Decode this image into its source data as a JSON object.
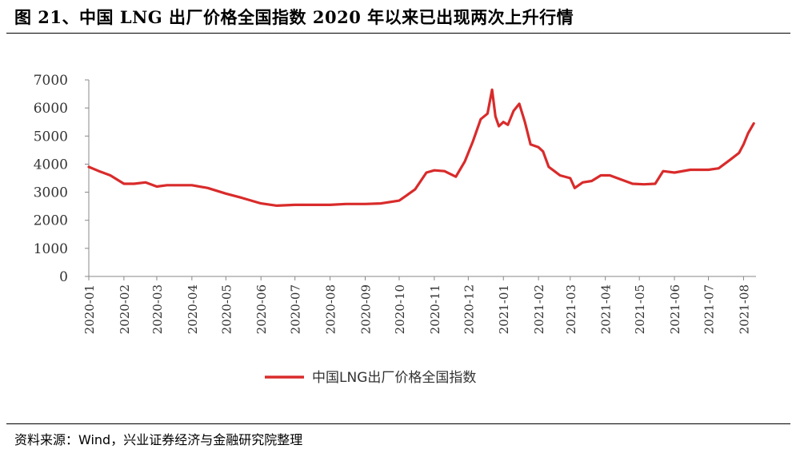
{
  "figure": {
    "title": "图 21、中国 LNG 出厂价格全国指数 2020 年以来已出现两次上升行情",
    "source": "资料来源：Wind，兴业证券经济与金融研究院整理"
  },
  "chart_data": {
    "type": "line",
    "title": "",
    "xlabel": "",
    "ylabel": "",
    "ylim": [
      0,
      7000
    ],
    "y_ticks": [
      0,
      1000,
      2000,
      3000,
      4000,
      5000,
      6000,
      7000
    ],
    "x_ticks": [
      "2020-01",
      "2020-02",
      "2020-03",
      "2020-04",
      "2020-05",
      "2020-06",
      "2020-07",
      "2020-08",
      "2020-09",
      "2020-10",
      "2020-11",
      "2020-12",
      "2021-01",
      "2021-02",
      "2021-03",
      "2021-04",
      "2021-05",
      "2021-06",
      "2021-07",
      "2021-08"
    ],
    "grid": false,
    "legend_position": "bottom-center",
    "series": [
      {
        "name": "中国LNG出厂价格全国指数",
        "color": "#d92b2b",
        "x": [
          "2020-01-01",
          "2020-01-10",
          "2020-01-20",
          "2020-02-01",
          "2020-02-10",
          "2020-02-20",
          "2020-03-01",
          "2020-03-10",
          "2020-03-20",
          "2020-04-01",
          "2020-04-15",
          "2020-05-01",
          "2020-05-15",
          "2020-06-01",
          "2020-06-15",
          "2020-07-01",
          "2020-07-15",
          "2020-08-01",
          "2020-08-15",
          "2020-09-01",
          "2020-09-15",
          "2020-10-01",
          "2020-10-15",
          "2020-10-25",
          "2020-11-01",
          "2020-11-10",
          "2020-11-20",
          "2020-11-28",
          "2020-12-05",
          "2020-12-12",
          "2020-12-18",
          "2020-12-22",
          "2020-12-25",
          "2020-12-28",
          "2021-01-01",
          "2021-01-05",
          "2021-01-10",
          "2021-01-15",
          "2021-01-20",
          "2021-01-25",
          "2021-02-01",
          "2021-02-05",
          "2021-02-10",
          "2021-02-15",
          "2021-02-20",
          "2021-03-01",
          "2021-03-05",
          "2021-03-12",
          "2021-03-20",
          "2021-03-28",
          "2021-04-05",
          "2021-04-15",
          "2021-04-25",
          "2021-05-05",
          "2021-05-15",
          "2021-05-22",
          "2021-06-01",
          "2021-06-15",
          "2021-07-01",
          "2021-07-10",
          "2021-07-20",
          "2021-07-28",
          "2021-08-01",
          "2021-08-05",
          "2021-08-10"
        ],
        "values": [
          3900,
          3750,
          3600,
          3300,
          3300,
          3350,
          3200,
          3250,
          3250,
          3250,
          3150,
          2950,
          2800,
          2600,
          2520,
          2550,
          2550,
          2550,
          2580,
          2580,
          2600,
          2700,
          3100,
          3700,
          3780,
          3750,
          3550,
          4100,
          4800,
          5600,
          5800,
          6650,
          5700,
          5350,
          5500,
          5400,
          5900,
          6150,
          5500,
          4700,
          4600,
          4450,
          3900,
          3750,
          3600,
          3500,
          3150,
          3350,
          3400,
          3600,
          3600,
          3450,
          3300,
          3280,
          3300,
          3750,
          3700,
          3800,
          3800,
          3850,
          4150,
          4400,
          4700,
          5100,
          5450
        ]
      }
    ]
  }
}
